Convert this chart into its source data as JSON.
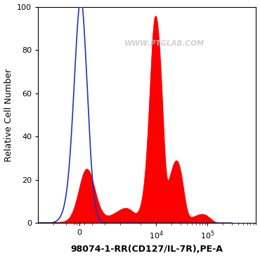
{
  "xlabel": "98074-1-RR(CD127/IL-7R),PE-A",
  "ylabel": "Relative Cell Number",
  "ylim": [
    0,
    100
  ],
  "watermark": "WWW.PTGLAB.COM",
  "watermark_color": "#c8c8c8",
  "bg_color": "#ffffff",
  "blue_color": "#2233bb",
  "red_color": "#ff0000",
  "xlabel_fontsize": 9,
  "ylabel_fontsize": 9,
  "tick_fontsize": 8,
  "linthresh": 1000,
  "xlim_min": -2000,
  "xlim_max": 300000
}
